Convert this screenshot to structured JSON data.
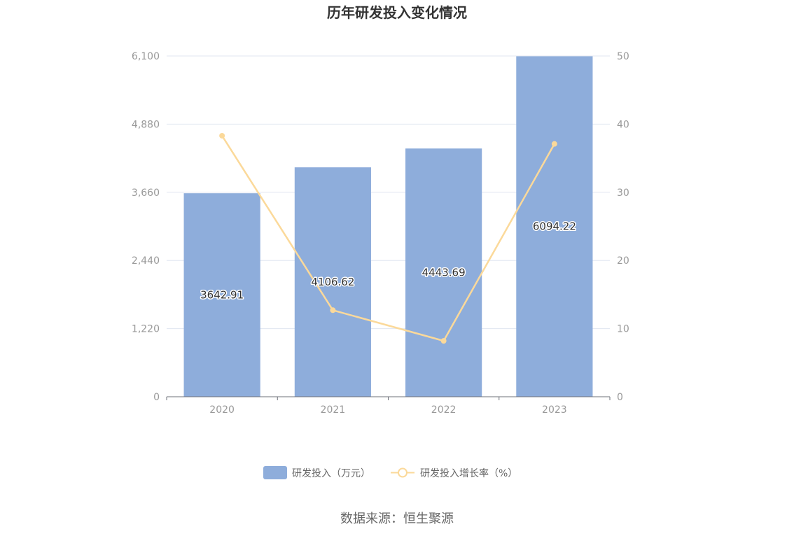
{
  "chart_data": {
    "type": "bar",
    "title": "历年研发投入变化情况",
    "categories": [
      "2020",
      "2021",
      "2022",
      "2023"
    ],
    "series": [
      {
        "name": "研发投入（万元）",
        "type": "bar",
        "axis": "left",
        "values": [
          3642.91,
          4106.62,
          4443.69,
          6094.22
        ],
        "value_labels": [
          "3642.91",
          "4106.62",
          "4443.69",
          "6094.22"
        ],
        "color": "#8eaddb"
      },
      {
        "name": "研发投入增长率（%）",
        "type": "line",
        "axis": "right",
        "values": [
          38.3,
          12.7,
          8.2,
          37.1
        ],
        "color": "#fbd99a"
      }
    ],
    "ylim_left": [
      0,
      6100
    ],
    "yticks_left": [
      "0",
      "1,220",
      "2,440",
      "3,660",
      "4,880",
      "6,100"
    ],
    "ylim_right": [
      0,
      50
    ],
    "yticks_right": [
      "0",
      "10",
      "20",
      "30",
      "40",
      "50"
    ],
    "grid": true,
    "legend_position": "bottom-center"
  },
  "source_text": "数据来源：恒生聚源"
}
